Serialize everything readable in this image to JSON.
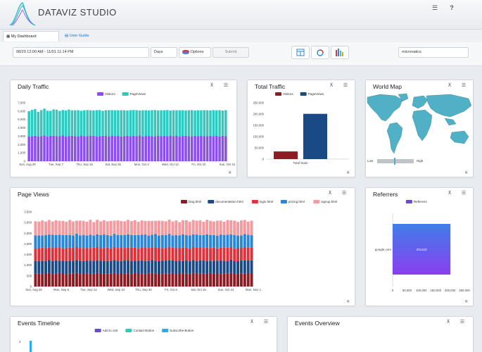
{
  "app": {
    "title": "DATAVIZ STUDIO",
    "menu_icon": "hamburger-icon",
    "help_label": "?"
  },
  "tabs": [
    {
      "label": "My Dashboard",
      "icon": "grid-icon"
    },
    {
      "label": "User Guide",
      "icon": "document-icon"
    }
  ],
  "toolbar": {
    "date_range": "08/29 12:00 AM - 11/01 11:14 PM",
    "interval": "Days",
    "options_label": "Options",
    "submit_label": "Submit",
    "site": "micronatics"
  },
  "colors": {
    "visitors": "#8a4df0",
    "pageviews": "#2ec9bf",
    "blog": "#8c1b24",
    "documentation": "#1a4a86",
    "login": "#e0313a",
    "pricing": "#2a86d8",
    "signup": "#f59a9e",
    "total_visitors": "#8c1b24",
    "total_pageviews": "#1a4a86",
    "map_land": "#4fb0c6",
    "referrer_top": "#3f7ee8",
    "referrer_bottom": "#8a3ff0",
    "add_to_cart": "#6a4ad0",
    "contact_button": "#2ec9bf",
    "subscribe_button": "#2aaee8"
  },
  "panels": {
    "daily_traffic": {
      "title": "Daily Traffic",
      "pin_icon": "pin-icon",
      "menu_icon": "menu-icon",
      "collapse": "«"
    },
    "total_traffic": {
      "title": "Total Traffic",
      "pin_icon": "pin-icon",
      "menu_icon": "menu-icon",
      "collapse": "«"
    },
    "world_map": {
      "title": "World Map",
      "pin_icon": "pin-icon",
      "menu_icon": "menu-icon",
      "collapse": "«",
      "legend_low": "Low",
      "legend_high": "High"
    },
    "page_views": {
      "title": "Page Views",
      "pin_icon": "pin-icon",
      "menu_icon": "menu-icon",
      "collapse": "«"
    },
    "referrers": {
      "title": "Referrers",
      "pin_icon": "pin-icon",
      "menu_icon": "menu-icon",
      "collapse": "«"
    },
    "events_timeline": {
      "title": "Events Timeline",
      "pin_icon": "pin-icon",
      "menu_icon": "menu-icon"
    },
    "events_overview": {
      "title": "Events Overview",
      "pin_icon": "pin-icon",
      "menu_icon": "menu-icon"
    }
  },
  "chart_data": [
    {
      "type": "bar",
      "stacked": true,
      "legend": [
        "Visitors",
        "PageViews"
      ],
      "xticks": [
        "Sun, Aug 29",
        "Tue, Sep 7",
        "Thu, Sep 16",
        "Sat, Sep 25",
        "Mon, Oct 4",
        "Wed, Oct 13",
        "Fri, Oct 22",
        "Sun, Oct 31"
      ],
      "yticks": [
        "7,000",
        "6,000",
        "5,000",
        "4,000",
        "3,000",
        "2,000",
        "1,000",
        "0"
      ],
      "ylim": [
        0,
        7000
      ],
      "series": [
        {
          "name": "Visitors",
          "values": [
            2950,
            3000,
            3050,
            2980,
            3020,
            3100,
            2970,
            3040,
            3060,
            2990,
            3010,
            3080,
            2960,
            3030,
            3050,
            3000,
            2980,
            3070,
            3020,
            2990,
            3040,
            3060,
            2970,
            3010,
            3050,
            3030,
            2980,
            3070,
            3000,
            3040,
            2960,
            3020,
            3060,
            2990,
            3050,
            3010,
            3080,
            2970,
            3030,
            3040,
            3000,
            2980,
            3060,
            3020,
            3050,
            2990,
            3070,
            3010,
            3040,
            2960,
            3030,
            3050,
            3000,
            2980,
            3060,
            3020,
            3040,
            2990,
            3010,
            3050,
            3000,
            3030,
            2970,
            3060,
            3020
          ]
        },
        {
          "name": "PageViews",
          "values": [
            3050,
            3150,
            3200,
            2950,
            3100,
            3200,
            3080,
            3000,
            3150,
            3180,
            3020,
            3050,
            3120,
            3160,
            3050,
            3100,
            3130,
            2980,
            3090,
            3140,
            3060,
            3030,
            3150,
            3120,
            2990,
            3080,
            3140,
            3050,
            3110,
            3060,
            3150,
            3090,
            3020,
            3130,
            3080,
            3110,
            3000,
            3140,
            3070,
            3050,
            3120,
            3150,
            3030,
            3090,
            3060,
            3140,
            3010,
            3100,
            3070,
            3150,
            3080,
            3040,
            3110,
            3140,
            3020,
            3090,
            3060,
            3130,
            3100,
            3040,
            3120,
            3070,
            3150,
            3010,
            3090
          ]
        }
      ]
    },
    {
      "type": "bar",
      "legend": [
        "Visitors",
        "PageViews"
      ],
      "categories": [
        "Total Stats"
      ],
      "yticks": [
        "250,000",
        "200,000",
        "150,000",
        "100,000",
        "50,000",
        "0"
      ],
      "ylim": [
        0,
        250000
      ],
      "series": [
        {
          "name": "Visitors",
          "values": [
            34000
          ]
        },
        {
          "name": "PageViews",
          "values": [
            201000
          ]
        }
      ]
    },
    {
      "type": "bar",
      "stacked": true,
      "legend": [
        "blog.html",
        "documentation.html",
        "login.html",
        "pricing.html",
        "signup.html"
      ],
      "xticks": [
        "Sun, Aug 29",
        "Mon, Sep 6",
        "Tue, Sep 14",
        "Wed, Sep 22",
        "Thu, Sep 30",
        "Fri, Oct 8",
        "Sat, Oct 16",
        "Sun, Oct 24",
        "Mon, Nov 1"
      ],
      "yticks": [
        "3,500",
        "3,000",
        "2,500",
        "2,000",
        "1,500",
        "1,000",
        "500",
        "0"
      ],
      "ylim": [
        0,
        3500
      ],
      "series": [
        {
          "name": "blog.html",
          "values": [
            600,
            620,
            580,
            610,
            640,
            590,
            600,
            630,
            610,
            580,
            620,
            600,
            640,
            590,
            610,
            620,
            580,
            600,
            630,
            610,
            590,
            620,
            600,
            640,
            580,
            610,
            600,
            620,
            590,
            630,
            610,
            600,
            580,
            620,
            640,
            600,
            610,
            590,
            620,
            600,
            630,
            580,
            610,
            620,
            600,
            590,
            640,
            610,
            600,
            620,
            580,
            630,
            600,
            610,
            590,
            620,
            600,
            640,
            610,
            580,
            620,
            600,
            630,
            610
          ]
        },
        {
          "name": "documentation.html",
          "values": [
            600,
            580,
            620,
            590,
            610,
            600,
            630,
            580,
            600,
            620,
            590,
            610,
            600,
            620,
            580,
            600,
            630,
            610,
            590,
            600,
            620,
            580,
            610,
            600,
            630,
            590,
            620,
            600,
            610,
            580,
            600,
            630,
            620,
            590,
            600,
            610,
            580,
            620,
            600,
            630,
            590,
            610,
            600,
            580,
            620,
            610,
            600,
            590,
            630,
            600,
            620,
            580,
            610,
            600,
            630,
            590,
            600,
            620,
            580,
            610,
            600,
            630,
            590,
            620
          ]
        },
        {
          "name": "login.html",
          "values": [
            580,
            600,
            620,
            600,
            590,
            610,
            600,
            620,
            580,
            600,
            630,
            590,
            610,
            600,
            620,
            580,
            600,
            610,
            630,
            590,
            600,
            620,
            580,
            610,
            600,
            630,
            590,
            600,
            620,
            610,
            580,
            600,
            630,
            600,
            590,
            620,
            610,
            600,
            580,
            630,
            600,
            610,
            590,
            620,
            600,
            580,
            610,
            630,
            600,
            590,
            620,
            600,
            610,
            580,
            600,
            630,
            620,
            590,
            600,
            610,
            580,
            620,
            600,
            600
          ]
        },
        {
          "name": "pricing.html",
          "values": [
            620,
            600,
            580,
            610,
            600,
            630,
            590,
            600,
            620,
            610,
            580,
            600,
            630,
            590,
            610,
            600,
            620,
            580,
            600,
            610,
            630,
            600,
            590,
            620,
            600,
            580,
            610,
            630,
            600,
            590,
            620,
            600,
            610,
            580,
            600,
            630,
            590,
            610,
            620,
            600,
            580,
            610,
            600,
            630,
            590,
            620,
            600,
            610,
            580,
            600,
            630,
            610,
            590,
            600,
            620,
            580,
            610,
            600,
            630,
            590,
            600,
            620,
            610,
            580
          ]
        },
        {
          "name": "signup.html",
          "values": [
            660,
            650,
            700,
            640,
            680,
            620,
            690,
            650,
            670,
            630,
            700,
            650,
            610,
            690,
            660,
            640,
            700,
            620,
            680,
            650,
            670,
            640,
            700,
            620,
            690,
            660,
            640,
            680,
            650,
            700,
            630,
            670,
            640,
            690,
            650,
            620,
            700,
            660,
            640,
            680,
            650,
            690,
            620,
            660,
            700,
            640,
            670,
            650,
            690,
            630,
            680,
            660,
            640,
            700,
            650,
            620,
            690,
            660,
            670,
            640,
            700,
            650,
            620,
            680
          ]
        }
      ]
    },
    {
      "type": "bar",
      "orientation": "horizontal",
      "legend": [
        "Referrers"
      ],
      "categories": [
        "google.com"
      ],
      "xticks": [
        "0",
        "50,000",
        "100,000",
        "150,000",
        "200,000",
        "250,000"
      ],
      "xlim": [
        0,
        250000
      ],
      "series": [
        {
          "name": "Referrers",
          "values": [
            201410
          ]
        }
      ],
      "data_labels": [
        "201410"
      ]
    },
    {
      "type": "bar",
      "legend": [
        "Add to cart",
        "Contact Button",
        "Subscribe Button"
      ],
      "yticks": [
        "3"
      ],
      "series": []
    }
  ]
}
